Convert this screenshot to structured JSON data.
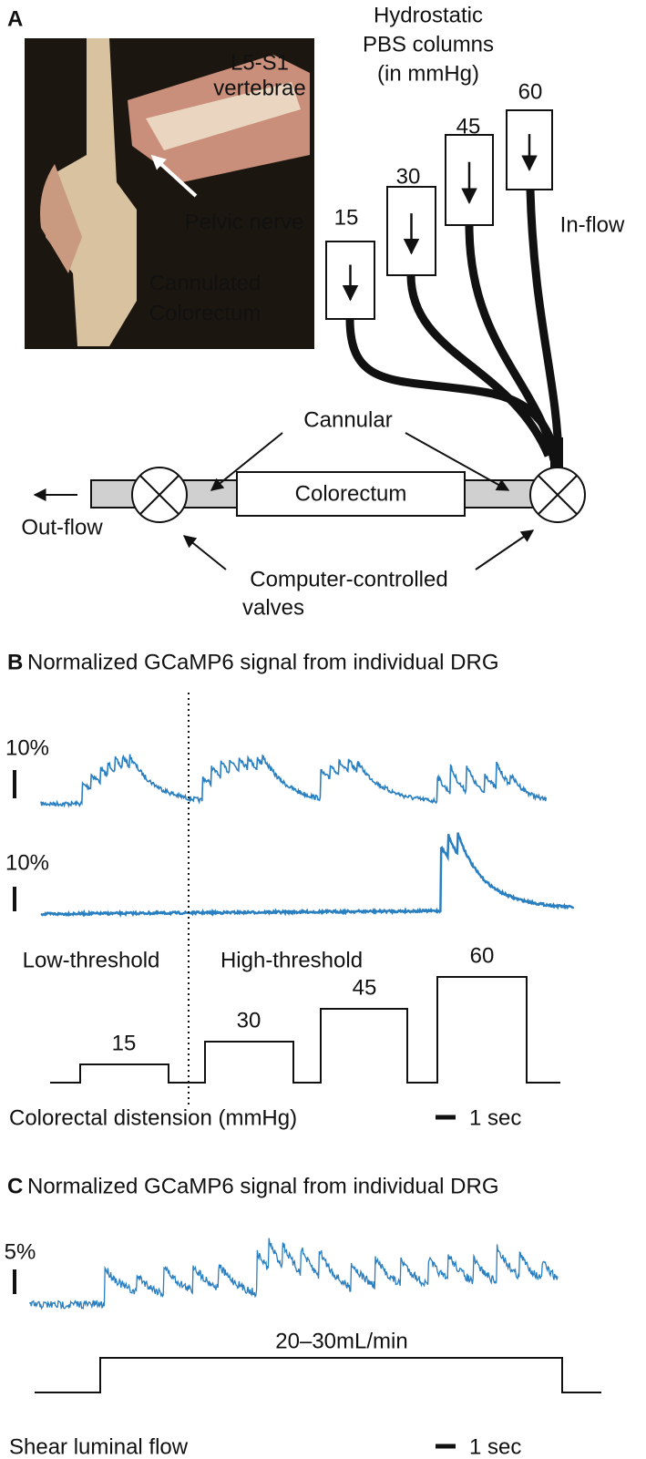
{
  "panel_a": {
    "label": "A",
    "columns_title": [
      "Hydrostatic",
      "PBS columns",
      "(in mmHg)"
    ],
    "columns": [
      "15",
      "30",
      "45",
      "60"
    ],
    "inflow": "In-flow",
    "photo_labels": {
      "vertebrae": [
        "L5-S1",
        "vertebrae"
      ],
      "nerve": "Pelvic nerve",
      "colorectum": [
        "Cannulated",
        "Colorectum"
      ]
    },
    "cannular": "Cannular",
    "colorectum": "Colorectum",
    "outflow": "Out-flow",
    "valves": [
      "Computer-controlled",
      "valves"
    ]
  },
  "panel_b": {
    "label": "B",
    "title": "Normalized GCaMP6 signal from individual DRG",
    "scale_1": "10%",
    "scale_2": "10%",
    "low": "Low-threshold",
    "high": "High-threshold",
    "steps": [
      "15",
      "30",
      "45",
      "60"
    ],
    "xlabel": "Colorectal distension (mmHg)",
    "time_scale": "1 sec"
  },
  "panel_c": {
    "label": "C",
    "title": "Normalized GCaMP6 signal from individual DRG",
    "scale": "5%",
    "flow": "20–30mL/min",
    "xlabel": "Shear luminal flow",
    "time_scale": "1 sec"
  }
}
